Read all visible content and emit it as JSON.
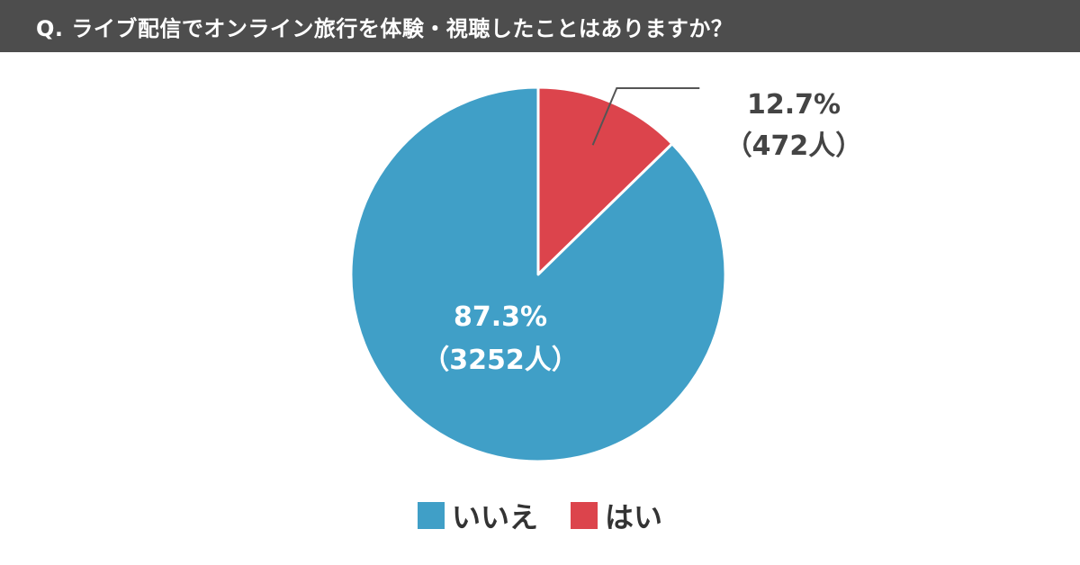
{
  "header": {
    "question": "Q. ライブ配信でオンライン旅行を体験・視聴したことはありますか？"
  },
  "colors": {
    "no": "#409fc7",
    "yes": "#dc444c",
    "header_bg": "#4d4d4d",
    "text_dark": "#444444"
  },
  "chart_data": {
    "type": "pie",
    "title": "",
    "slices": [
      {
        "name": "はい",
        "percent": 12.7,
        "count": 472,
        "percent_label": "12.7%",
        "count_label": "（472人）",
        "color": "#dc444c"
      },
      {
        "name": "いいえ",
        "percent": 87.3,
        "count": 3252,
        "percent_label": "87.3%",
        "count_label": "（3252人）",
        "color": "#409fc7"
      }
    ],
    "start": "12 o'clock",
    "direction": "clockwise",
    "legend": {
      "position": "bottom",
      "entries": [
        {
          "label": "いいえ",
          "color": "#409fc7"
        },
        {
          "label": "はい",
          "color": "#dc444c"
        }
      ]
    }
  }
}
